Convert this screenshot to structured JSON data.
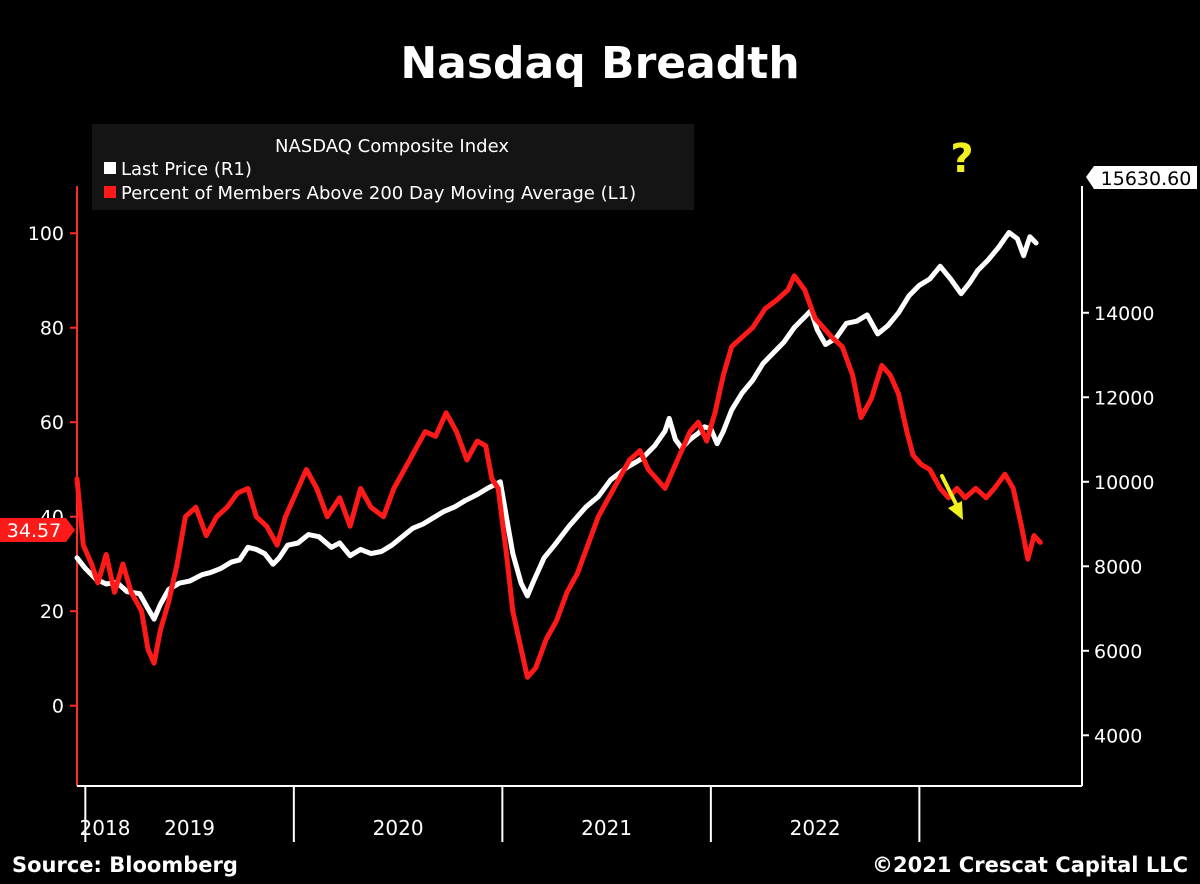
{
  "chart_data": {
    "type": "line",
    "title": "Nasdaq Breadth",
    "legend": {
      "title": "NASDAQ Composite Index",
      "position": "top-left",
      "entries": [
        {
          "label": "Last Price  (R1)",
          "color": "#ffffff"
        },
        {
          "label": "Percent of Members Above 200 Day Moving Average  (L1)",
          "color": "#ff1a1a"
        }
      ]
    },
    "x_ticks": [
      "2018",
      "2019",
      "2020",
      "2021",
      "2022"
    ],
    "left_axis": {
      "range": [
        -17,
        110
      ],
      "ticks": [
        "0",
        "20",
        "40",
        "60",
        "80",
        "100"
      ],
      "tick_values": [
        0,
        20,
        40,
        60,
        80,
        100
      ]
    },
    "right_axis": {
      "range": [
        2800,
        17000
      ],
      "ticks": [
        "4000",
        "6000",
        "8000",
        "10000",
        "12000",
        "14000"
      ],
      "tick_values": [
        4000,
        6000,
        8000,
        10000,
        12000,
        14000
      ]
    },
    "last_values": {
      "price": "15630.60",
      "percent": "34.57"
    },
    "series": [
      {
        "name": "Last Price",
        "axis": "right",
        "color": "#ffffff",
        "points": [
          [
            2017.96,
            8200
          ],
          [
            2018.0,
            7950
          ],
          [
            2018.05,
            7700
          ],
          [
            2018.1,
            7580
          ],
          [
            2018.15,
            7620
          ],
          [
            2018.2,
            7400
          ],
          [
            2018.26,
            7350
          ],
          [
            2018.3,
            7000
          ],
          [
            2018.33,
            6750
          ],
          [
            2018.36,
            7100
          ],
          [
            2018.4,
            7450
          ],
          [
            2018.45,
            7600
          ],
          [
            2018.5,
            7650
          ],
          [
            2018.56,
            7800
          ],
          [
            2018.6,
            7850
          ],
          [
            2018.65,
            7950
          ],
          [
            2018.7,
            8100
          ],
          [
            2018.74,
            8150
          ],
          [
            2018.78,
            8450
          ],
          [
            2018.82,
            8400
          ],
          [
            2018.86,
            8300
          ],
          [
            2018.9,
            8050
          ],
          [
            2018.93,
            8200
          ],
          [
            2018.97,
            8500
          ],
          [
            2019.02,
            8550
          ],
          [
            2019.07,
            8750
          ],
          [
            2019.12,
            8700
          ],
          [
            2019.18,
            8450
          ],
          [
            2019.22,
            8550
          ],
          [
            2019.27,
            8250
          ],
          [
            2019.32,
            8400
          ],
          [
            2019.37,
            8300
          ],
          [
            2019.42,
            8350
          ],
          [
            2019.47,
            8500
          ],
          [
            2019.52,
            8700
          ],
          [
            2019.57,
            8900
          ],
          [
            2019.62,
            9000
          ],
          [
            2019.67,
            9150
          ],
          [
            2019.72,
            9300
          ],
          [
            2019.77,
            9400
          ],
          [
            2019.82,
            9550
          ],
          [
            2019.88,
            9700
          ],
          [
            2019.93,
            9850
          ],
          [
            2019.99,
            10000
          ],
          [
            2020.05,
            8300
          ],
          [
            2020.09,
            7600
          ],
          [
            2020.12,
            7300
          ],
          [
            2020.15,
            7650
          ],
          [
            2020.2,
            8200
          ],
          [
            2020.25,
            8500
          ],
          [
            2020.32,
            8950
          ],
          [
            2020.4,
            9400
          ],
          [
            2020.46,
            9650
          ],
          [
            2020.52,
            10050
          ],
          [
            2020.6,
            10350
          ],
          [
            2020.67,
            10550
          ],
          [
            2020.73,
            10850
          ],
          [
            2020.78,
            11200
          ],
          [
            2020.8,
            11500
          ],
          [
            2020.83,
            11000
          ],
          [
            2020.86,
            10800
          ],
          [
            2020.9,
            11000
          ],
          [
            2020.94,
            11150
          ],
          [
            2020.97,
            11300
          ],
          [
            2021.0,
            11250
          ],
          [
            2021.03,
            10900
          ],
          [
            2021.06,
            11200
          ],
          [
            2021.1,
            11700
          ],
          [
            2021.15,
            12100
          ],
          [
            2021.2,
            12400
          ],
          [
            2021.25,
            12800
          ],
          [
            2021.3,
            13050
          ],
          [
            2021.35,
            13300
          ],
          [
            2021.4,
            13650
          ],
          [
            2021.45,
            13900
          ],
          [
            2021.48,
            14050
          ],
          [
            2021.51,
            13600
          ],
          [
            2021.55,
            13250
          ],
          [
            2021.6,
            13400
          ],
          [
            2021.65,
            13750
          ],
          [
            2021.7,
            13800
          ],
          [
            2021.75,
            13950
          ],
          [
            2021.8,
            13500
          ],
          [
            2021.85,
            13700
          ],
          [
            2021.9,
            14000
          ],
          [
            2021.95,
            14400
          ],
          [
            2022.0,
            14650
          ],
          [
            2022.05,
            14800
          ],
          [
            2022.1,
            15100
          ],
          [
            2022.15,
            14800
          ],
          [
            2022.2,
            14450
          ],
          [
            2022.24,
            14700
          ],
          [
            2022.28,
            15000
          ],
          [
            2022.33,
            15250
          ],
          [
            2022.38,
            15550
          ],
          [
            2022.43,
            15900
          ],
          [
            2022.47,
            15750
          ],
          [
            2022.5,
            15350
          ],
          [
            2022.53,
            15800
          ],
          [
            2022.56,
            15650
          ]
        ]
      },
      {
        "name": "Percent of Members Above 200 Day Moving Average",
        "axis": "left",
        "color": "#ff1a1a",
        "points": [
          [
            2017.96,
            48
          ],
          [
            2017.99,
            34
          ],
          [
            2018.03,
            30
          ],
          [
            2018.06,
            26
          ],
          [
            2018.1,
            32
          ],
          [
            2018.14,
            24
          ],
          [
            2018.18,
            30
          ],
          [
            2018.22,
            24
          ],
          [
            2018.27,
            20
          ],
          [
            2018.3,
            12
          ],
          [
            2018.33,
            9
          ],
          [
            2018.36,
            16
          ],
          [
            2018.4,
            22
          ],
          [
            2018.44,
            30
          ],
          [
            2018.48,
            40
          ],
          [
            2018.53,
            42
          ],
          [
            2018.58,
            36
          ],
          [
            2018.63,
            40
          ],
          [
            2018.68,
            42
          ],
          [
            2018.73,
            45
          ],
          [
            2018.78,
            46
          ],
          [
            2018.82,
            40
          ],
          [
            2018.87,
            38
          ],
          [
            2018.92,
            34
          ],
          [
            2018.96,
            40
          ],
          [
            2019.01,
            45
          ],
          [
            2019.06,
            50
          ],
          [
            2019.11,
            46
          ],
          [
            2019.16,
            40
          ],
          [
            2019.22,
            44
          ],
          [
            2019.27,
            38
          ],
          [
            2019.32,
            46
          ],
          [
            2019.37,
            42
          ],
          [
            2019.43,
            40
          ],
          [
            2019.48,
            46
          ],
          [
            2019.53,
            50
          ],
          [
            2019.58,
            54
          ],
          [
            2019.63,
            58
          ],
          [
            2019.68,
            57
          ],
          [
            2019.73,
            62
          ],
          [
            2019.78,
            58
          ],
          [
            2019.83,
            52
          ],
          [
            2019.88,
            56
          ],
          [
            2019.92,
            55
          ],
          [
            2019.95,
            48
          ],
          [
            2019.98,
            46
          ],
          [
            2020.02,
            32
          ],
          [
            2020.05,
            20
          ],
          [
            2020.09,
            12
          ],
          [
            2020.12,
            6
          ],
          [
            2020.16,
            8
          ],
          [
            2020.21,
            14
          ],
          [
            2020.26,
            18
          ],
          [
            2020.31,
            24
          ],
          [
            2020.36,
            28
          ],
          [
            2020.41,
            34
          ],
          [
            2020.46,
            40
          ],
          [
            2020.51,
            44
          ],
          [
            2020.56,
            48
          ],
          [
            2020.61,
            52
          ],
          [
            2020.66,
            54
          ],
          [
            2020.7,
            50
          ],
          [
            2020.74,
            48
          ],
          [
            2020.78,
            46
          ],
          [
            2020.82,
            50
          ],
          [
            2020.86,
            54
          ],
          [
            2020.9,
            58
          ],
          [
            2020.94,
            60
          ],
          [
            2020.98,
            56
          ],
          [
            2021.02,
            62
          ],
          [
            2021.06,
            70
          ],
          [
            2021.1,
            76
          ],
          [
            2021.15,
            78
          ],
          [
            2021.2,
            80
          ],
          [
            2021.26,
            84
          ],
          [
            2021.32,
            86
          ],
          [
            2021.37,
            88
          ],
          [
            2021.4,
            91
          ],
          [
            2021.45,
            88
          ],
          [
            2021.5,
            82
          ],
          [
            2021.54,
            80
          ],
          [
            2021.58,
            78
          ],
          [
            2021.63,
            76
          ],
          [
            2021.68,
            70
          ],
          [
            2021.72,
            61
          ],
          [
            2021.77,
            65
          ],
          [
            2021.82,
            72
          ],
          [
            2021.86,
            70
          ],
          [
            2021.9,
            66
          ],
          [
            2021.94,
            58
          ],
          [
            2021.97,
            53
          ],
          [
            2022.01,
            51
          ],
          [
            2022.05,
            50
          ],
          [
            2022.1,
            46
          ],
          [
            2022.14,
            44
          ],
          [
            2022.18,
            46
          ],
          [
            2022.22,
            44
          ],
          [
            2022.27,
            46
          ],
          [
            2022.32,
            44
          ],
          [
            2022.36,
            46
          ],
          [
            2022.41,
            49
          ],
          [
            2022.45,
            46
          ],
          [
            2022.49,
            38
          ],
          [
            2022.52,
            31
          ],
          [
            2022.55,
            36
          ],
          [
            2022.58,
            34.57
          ]
        ]
      }
    ]
  },
  "source_label": "Source: Bloomberg",
  "copyright_label": "©2021 Crescat Capital LLC",
  "question_mark": "?",
  "colors": {
    "price": "#ffffff",
    "percent": "#ff1a1a",
    "annotation": "#f0f020",
    "legend_bg": "#141414"
  }
}
